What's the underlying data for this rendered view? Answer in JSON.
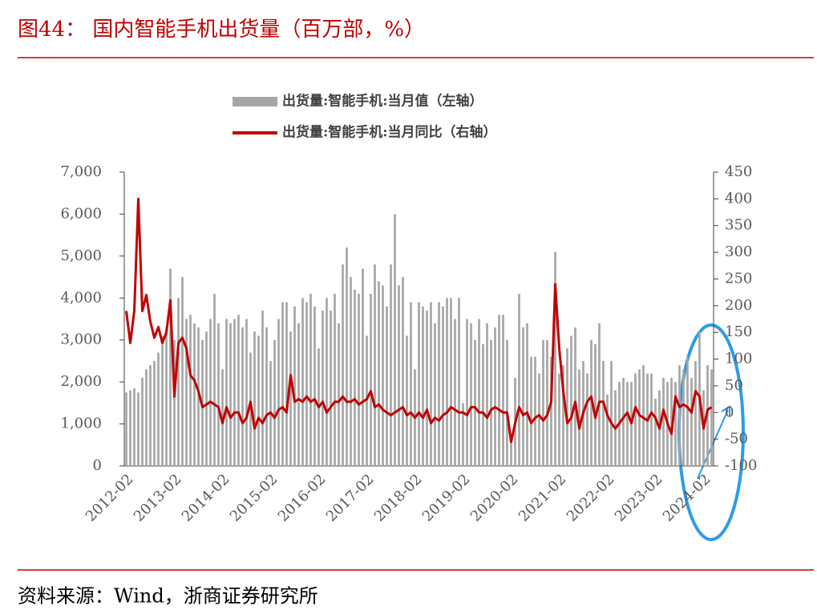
{
  "title": "图44：  国内智能手机出货量（百万部，%）",
  "source": "资料来源：Wind，浙商证券研究所",
  "chart_data": {
    "type": "combo",
    "categories": [
      "2012-02",
      null,
      null,
      null,
      null,
      null,
      null,
      null,
      null,
      null,
      null,
      null,
      "2013-02",
      null,
      null,
      null,
      null,
      null,
      null,
      null,
      null,
      null,
      null,
      null,
      "2014-02",
      null,
      null,
      null,
      null,
      null,
      null,
      null,
      null,
      null,
      null,
      null,
      "2015-02",
      null,
      null,
      null,
      null,
      null,
      null,
      null,
      null,
      null,
      null,
      null,
      "2016-02",
      null,
      null,
      null,
      null,
      null,
      null,
      null,
      null,
      null,
      null,
      null,
      "2017-02",
      null,
      null,
      null,
      null,
      null,
      null,
      null,
      null,
      null,
      null,
      null,
      "2018-02",
      null,
      null,
      null,
      null,
      null,
      null,
      null,
      null,
      null,
      null,
      null,
      "2019-02",
      null,
      null,
      null,
      null,
      null,
      null,
      null,
      null,
      null,
      null,
      null,
      "2020-02",
      null,
      null,
      null,
      null,
      null,
      null,
      null,
      null,
      null,
      null,
      null,
      "2021-02",
      null,
      null,
      null,
      null,
      null,
      null,
      null,
      null,
      null,
      null,
      null,
      "2022-02",
      null,
      null,
      null,
      null,
      null,
      null,
      null,
      null,
      null,
      null,
      null,
      "2023-02",
      null,
      null,
      null,
      null,
      null,
      null,
      null,
      null,
      null,
      null,
      null,
      "2024-02",
      null,
      null
    ],
    "series": [
      {
        "name": "出货量:智能手机:当月值（左轴）",
        "type": "bar",
        "color": "#a6a6a6",
        "values": [
          1750,
          1800,
          1850,
          1750,
          2100,
          2300,
          2400,
          2500,
          2700,
          3100,
          3300,
          4700,
          3000,
          4000,
          4500,
          3500,
          3600,
          3400,
          3300,
          3000,
          3200,
          3500,
          4100,
          3400,
          2300,
          3500,
          3400,
          3500,
          3600,
          3300,
          3500,
          2700,
          3200,
          3100,
          3700,
          3300,
          2500,
          3000,
          3500,
          3900,
          3900,
          3200,
          3800,
          3400,
          4000,
          3900,
          4100,
          3800,
          2800,
          3700,
          4000,
          3700,
          4100,
          3400,
          4800,
          5200,
          4500,
          4200,
          4100,
          4700,
          3100,
          4100,
          4800,
          4400,
          4300,
          3800,
          4800,
          6000,
          4300,
          4500,
          3100,
          3900,
          2300,
          3900,
          3800,
          3700,
          3900,
          3400,
          3900,
          3800,
          4000,
          4000,
          3500,
          4000,
          1500,
          3500,
          3400,
          3000,
          3500,
          2900,
          3400,
          3000,
          3300,
          3600,
          3600,
          3000,
          650,
          2100,
          4100,
          3300,
          3400,
          2600,
          2600,
          2200,
          3000,
          3000,
          2600,
          5100,
          2200,
          2400,
          2800,
          3100,
          3300,
          2300,
          2500,
          2200,
          3000,
          2900,
          3400,
          2500,
          1700,
          2500,
          1800,
          2000,
          2100,
          2000,
          2000,
          2200,
          2300,
          2400,
          2200,
          2200,
          1600,
          1800,
          2100,
          2000,
          2100,
          2000,
          2400,
          2300,
          2600,
          2100,
          2500,
          3200,
          1800,
          2400,
          2300
        ]
      },
      {
        "name": "出货量:智能手机:当月同比（右轴）",
        "type": "line",
        "axis": "y2",
        "color": "#c00000",
        "values": [
          190,
          130,
          190,
          400,
          190,
          220,
          170,
          140,
          160,
          130,
          150,
          210,
          30,
          130,
          140,
          120,
          70,
          60,
          40,
          10,
          15,
          20,
          15,
          10,
          -20,
          10,
          -10,
          0,
          0,
          -20,
          -10,
          20,
          -30,
          -10,
          -20,
          -5,
          0,
          -10,
          5,
          10,
          0,
          70,
          20,
          25,
          20,
          30,
          20,
          25,
          10,
          20,
          0,
          10,
          20,
          20,
          30,
          20,
          20,
          25,
          15,
          20,
          25,
          40,
          10,
          15,
          5,
          0,
          -5,
          0,
          5,
          10,
          -5,
          0,
          -10,
          0,
          -10,
          5,
          -20,
          -10,
          -15,
          -5,
          0,
          10,
          5,
          0,
          0,
          -5,
          10,
          10,
          0,
          0,
          -10,
          5,
          10,
          5,
          0,
          0,
          -55,
          -20,
          10,
          -5,
          0,
          -20,
          -10,
          -5,
          -15,
          -5,
          20,
          240,
          120,
          40,
          -20,
          -10,
          20,
          -30,
          0,
          20,
          30,
          -10,
          20,
          20,
          -5,
          -20,
          -30,
          -20,
          -10,
          0,
          -20,
          10,
          -5,
          -10,
          -15,
          0,
          -10,
          -30,
          5,
          -20,
          -40,
          30,
          10,
          15,
          10,
          0,
          40,
          30,
          -30,
          5,
          10
        ]
      }
    ],
    "ylim": [
      0,
      7000
    ],
    "yticks": [
      0,
      {
        "value": 1000,
        "label": "1,000"
      },
      {
        "value": 2000,
        "label": "2,000"
      },
      {
        "value": 3000,
        "label": "3,000"
      },
      {
        "value": 4000,
        "label": "4,000"
      },
      {
        "value": 5000,
        "label": "5,000"
      },
      {
        "value": 6000,
        "label": "6,000"
      },
      {
        "value": 7000,
        "label": "7,000"
      }
    ],
    "y2lim": [
      -100,
      450
    ],
    "y2ticks": [
      -100,
      -50,
      0,
      50,
      100,
      150,
      200,
      250,
      300,
      350,
      400,
      450
    ],
    "legend": "top",
    "grid": false
  }
}
